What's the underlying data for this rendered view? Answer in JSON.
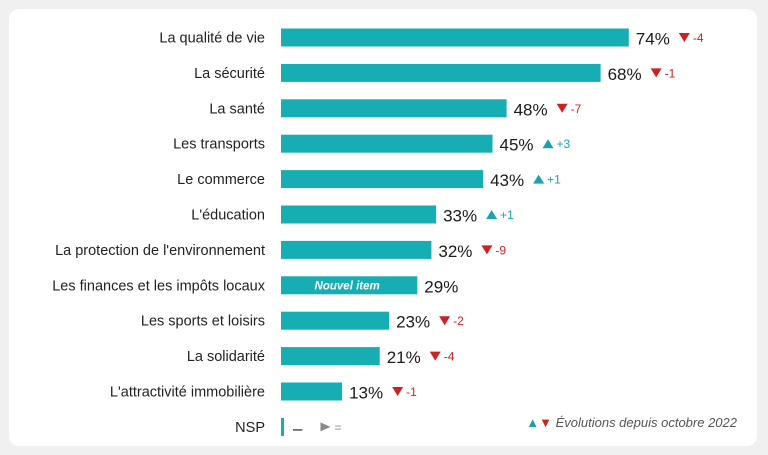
{
  "colors": {
    "bar": "#16aeb3",
    "up": "#1aa3a8",
    "down": "#cc2222",
    "neutral": "#8a8a8a"
  },
  "chart_data": {
    "type": "bar",
    "orientation": "horizontal",
    "categories": [
      "La qualité de vie",
      "La sécurité",
      "La santé",
      "Les transports",
      "Le commerce",
      "L'éducation",
      "La protection de l'environnement",
      "Les finances et les impôts locaux",
      "Les sports et loisirs",
      "La solidarité",
      "L'attractivité immobilière",
      "NSP"
    ],
    "values": [
      74,
      68,
      48,
      45,
      43,
      33,
      32,
      29,
      23,
      21,
      13,
      0
    ],
    "value_labels": [
      "74%",
      "68%",
      "48%",
      "45%",
      "43%",
      "33%",
      "32%",
      "29%",
      "23%",
      "21%",
      "13%",
      "–"
    ],
    "deltas": [
      {
        "dir": "down",
        "text": "-4"
      },
      {
        "dir": "down",
        "text": "-1"
      },
      {
        "dir": "down",
        "text": "-7"
      },
      {
        "dir": "up",
        "text": "+3"
      },
      {
        "dir": "up",
        "text": "+1"
      },
      {
        "dir": "up",
        "text": "+1"
      },
      {
        "dir": "down",
        "text": "-9"
      },
      null,
      {
        "dir": "down",
        "text": "-2"
      },
      {
        "dir": "down",
        "text": "-4"
      },
      {
        "dir": "down",
        "text": "-1"
      },
      {
        "dir": "same",
        "text": "="
      }
    ],
    "bar_notes": [
      null,
      null,
      null,
      null,
      null,
      null,
      null,
      "Nouvel item",
      null,
      null,
      null,
      null
    ],
    "xlim": [
      0,
      100
    ],
    "legend": "Évolutions depuis octobre 2022",
    "legend_position": "bottom-right",
    "grid": false
  }
}
